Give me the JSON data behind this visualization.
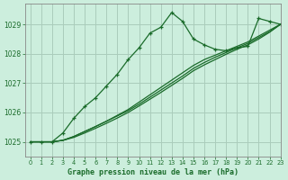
{
  "bg_color": "#cceedd",
  "grid_color": "#aaccbb",
  "line_color": "#1a6b2a",
  "text_color": "#1a6b2a",
  "xlabel": "Graphe pression niveau de la mer (hPa)",
  "xlim": [
    -0.5,
    23
  ],
  "ylim": [
    1024.5,
    1029.7
  ],
  "yticks": [
    1025,
    1026,
    1027,
    1028,
    1029
  ],
  "xticks": [
    0,
    1,
    2,
    3,
    4,
    5,
    6,
    7,
    8,
    9,
    10,
    11,
    12,
    13,
    14,
    15,
    16,
    17,
    18,
    19,
    20,
    21,
    22,
    23
  ],
  "wiggly": [
    1025.0,
    1025.0,
    1025.0,
    1025.3,
    1025.8,
    1026.2,
    1026.5,
    1026.9,
    1027.3,
    1027.8,
    1028.2,
    1028.7,
    1028.9,
    1029.4,
    1029.1,
    1028.5,
    1028.3,
    1028.15,
    1028.1,
    1028.2,
    1028.25,
    1029.2,
    1029.1,
    1029.0
  ],
  "straight1": [
    1025.0,
    1025.0,
    1025.0,
    1025.05,
    1025.18,
    1025.35,
    1025.52,
    1025.7,
    1025.9,
    1026.1,
    1026.35,
    1026.6,
    1026.85,
    1027.1,
    1027.35,
    1027.6,
    1027.8,
    1027.95,
    1028.1,
    1028.25,
    1028.4,
    1028.6,
    1028.8,
    1029.0
  ],
  "straight2": [
    1025.0,
    1025.0,
    1025.0,
    1025.05,
    1025.18,
    1025.35,
    1025.52,
    1025.7,
    1025.88,
    1026.06,
    1026.28,
    1026.52,
    1026.76,
    1027.0,
    1027.24,
    1027.5,
    1027.7,
    1027.88,
    1028.04,
    1028.2,
    1028.35,
    1028.55,
    1028.75,
    1029.0
  ],
  "straight3": [
    1025.0,
    1025.0,
    1025.0,
    1025.05,
    1025.15,
    1025.3,
    1025.46,
    1025.63,
    1025.81,
    1026.0,
    1026.22,
    1026.45,
    1026.68,
    1026.92,
    1027.16,
    1027.42,
    1027.62,
    1027.8,
    1027.98,
    1028.15,
    1028.3,
    1028.5,
    1028.73,
    1029.0
  ]
}
